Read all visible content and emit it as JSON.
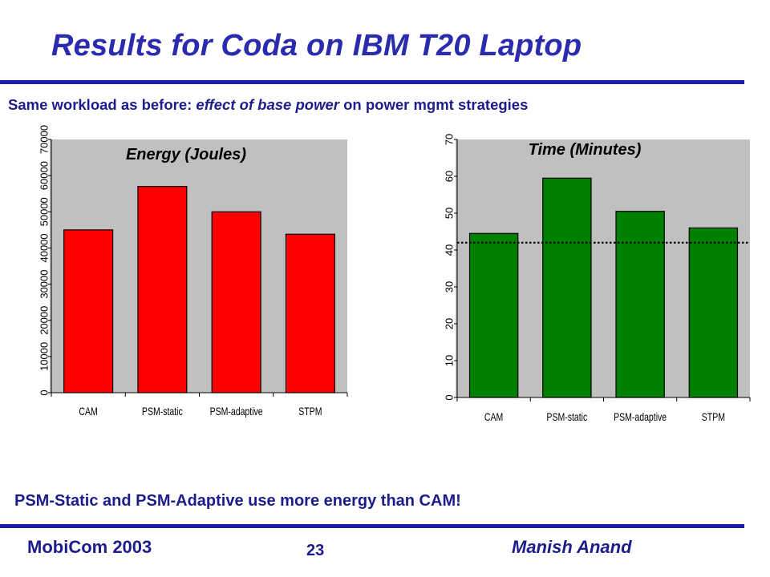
{
  "slide": {
    "title": "Results for Coda on IBM T20 Laptop",
    "subtitle_parts": [
      "Same workload as before: ",
      "effect of base power",
      " on power mgmt strategies"
    ],
    "note": "PSM-Static and PSM-Adaptive use more energy than CAM!",
    "footer_left": "MobiCom 2003",
    "page_number": "23",
    "footer_right": "Manish Anand"
  },
  "colors": {
    "title": "#2b2bb0",
    "rule": "#1c1ca8",
    "plot_background": "#c0c0c0",
    "energy_bars": "#ff0000",
    "time_bars": "#008000"
  },
  "chart_data": [
    {
      "type": "bar",
      "title": "Energy (Joules)",
      "categories": [
        "CAM",
        "PSM-static",
        "PSM-adaptive",
        "STPM"
      ],
      "values": [
        45000,
        57000,
        50000,
        43800
      ],
      "ylim": [
        0,
        70000
      ],
      "yticks": [
        0,
        10000,
        20000,
        30000,
        40000,
        50000,
        60000,
        70000
      ],
      "grid": false,
      "color": "#ff0000"
    },
    {
      "type": "bar",
      "title": "Time (Minutes)",
      "categories": [
        "CAM",
        "PSM-static",
        "PSM-adaptive",
        "STPM"
      ],
      "values": [
        44.5,
        59.5,
        50.5,
        46
      ],
      "ylim": [
        0,
        70
      ],
      "yticks": [
        0,
        10,
        20,
        30,
        40,
        50,
        60,
        70
      ],
      "reference_line": 42,
      "grid": false,
      "color": "#008000"
    }
  ]
}
